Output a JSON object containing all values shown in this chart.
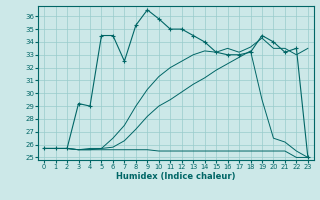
{
  "xlabel": "Humidex (Indice chaleur)",
  "bg_color": "#cce8e8",
  "grid_color": "#99cccc",
  "line_color": "#006666",
  "xlim": [
    -0.5,
    23.5
  ],
  "ylim": [
    24.8,
    36.8
  ],
  "yticks": [
    25,
    26,
    27,
    28,
    29,
    30,
    31,
    32,
    33,
    34,
    35,
    36
  ],
  "xticks": [
    0,
    1,
    2,
    3,
    4,
    5,
    6,
    7,
    8,
    9,
    10,
    11,
    12,
    13,
    14,
    15,
    16,
    17,
    18,
    19,
    20,
    21,
    22,
    23
  ],
  "line1": {
    "x": [
      0,
      1,
      2,
      3,
      4,
      5,
      6,
      7,
      8,
      9,
      10,
      11,
      12,
      13,
      14,
      15,
      16,
      17,
      18,
      19,
      20,
      21,
      22,
      23
    ],
    "y": [
      25.7,
      25.7,
      25.7,
      29.2,
      29.0,
      34.5,
      34.5,
      32.5,
      35.3,
      36.5,
      35.8,
      35.0,
      35.0,
      34.5,
      34.0,
      33.2,
      33.0,
      33.0,
      33.2,
      34.5,
      34.0,
      33.2,
      33.5,
      25.0
    ],
    "marker": true
  },
  "line2": {
    "x": [
      0,
      1,
      2,
      3,
      4,
      5,
      6,
      7,
      8,
      9,
      10,
      11,
      12,
      13,
      14,
      15,
      16,
      17,
      18,
      19,
      20,
      21,
      22,
      23
    ],
    "y": [
      25.7,
      25.7,
      25.7,
      25.6,
      25.6,
      25.6,
      25.6,
      25.6,
      25.6,
      25.6,
      25.5,
      25.5,
      25.5,
      25.5,
      25.5,
      25.5,
      25.5,
      25.5,
      25.5,
      25.5,
      25.5,
      25.5,
      25.0,
      25.0
    ],
    "marker": false
  },
  "line3": {
    "x": [
      0,
      1,
      2,
      3,
      4,
      5,
      6,
      7,
      8,
      9,
      10,
      11,
      12,
      13,
      14,
      15,
      16,
      17,
      18,
      19,
      20,
      21,
      22,
      23
    ],
    "y": [
      25.7,
      25.7,
      25.7,
      25.6,
      25.6,
      25.7,
      25.8,
      26.3,
      27.2,
      28.2,
      29.0,
      29.5,
      30.1,
      30.7,
      31.2,
      31.8,
      32.3,
      32.8,
      33.3,
      29.5,
      26.5,
      26.2,
      25.5,
      25.0
    ],
    "marker": false
  },
  "line4": {
    "x": [
      0,
      1,
      2,
      3,
      4,
      5,
      6,
      7,
      8,
      9,
      10,
      11,
      12,
      13,
      14,
      15,
      16,
      17,
      18,
      19,
      20,
      21,
      22,
      23
    ],
    "y": [
      25.7,
      25.7,
      25.7,
      25.6,
      25.7,
      25.7,
      26.5,
      27.5,
      29.0,
      30.3,
      31.3,
      32.0,
      32.5,
      33.0,
      33.3,
      33.2,
      33.5,
      33.2,
      33.6,
      34.3,
      33.5,
      33.5,
      33.0,
      33.5
    ],
    "marker": false
  }
}
